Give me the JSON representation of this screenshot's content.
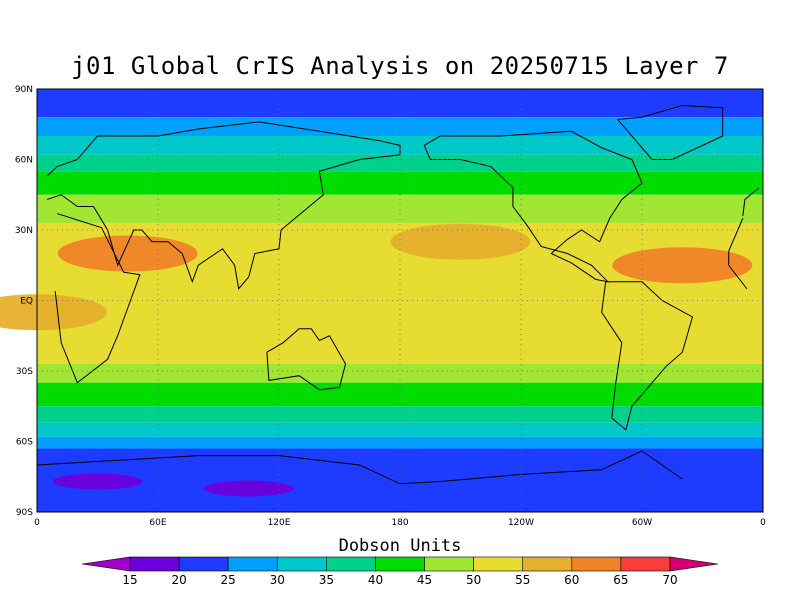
{
  "title": "j01 Global CrIS Analysis on 20250715 Layer 7",
  "colorbar": {
    "label": "Dobson Units",
    "ticks": [
      "15",
      "20",
      "25",
      "30",
      "35",
      "40",
      "45",
      "50",
      "55",
      "60",
      "65",
      "70"
    ],
    "colors": [
      "#a000c8",
      "#6e00dc",
      "#1e3cff",
      "#00a0ff",
      "#00c8c8",
      "#00d28c",
      "#00dc00",
      "#a0e632",
      "#e6dc32",
      "#e6af2d",
      "#f08228",
      "#fa3c3c",
      "#d2006e"
    ]
  },
  "axes": {
    "lat_labels": [
      "90N",
      "60N",
      "30N",
      "EQ",
      "30S",
      "60S",
      "90S"
    ],
    "lon_labels": [
      "0",
      "60E",
      "120E",
      "180",
      "120W",
      "60W",
      "0"
    ]
  },
  "chart_data": {
    "type": "heatmap",
    "title": "j01 Global CrIS Analysis on 20250715 Layer 7",
    "units": "Dobson Units",
    "x_range": [
      "0",
      "0"
    ],
    "y_range": [
      "90S",
      "90N"
    ],
    "contour_levels": [
      15,
      20,
      25,
      30,
      35,
      40,
      45,
      50,
      55,
      60,
      65,
      70
    ],
    "zonal_bands": [
      {
        "lat_from": 90,
        "lat_to": 78,
        "value": 20
      },
      {
        "lat_from": 78,
        "lat_to": 70,
        "value": 25
      },
      {
        "lat_from": 70,
        "lat_to": 62,
        "value": 30
      },
      {
        "lat_from": 62,
        "lat_to": 55,
        "value": 35
      },
      {
        "lat_from": 55,
        "lat_to": 45,
        "value": 40
      },
      {
        "lat_from": 45,
        "lat_to": 33,
        "value": 45
      },
      {
        "lat_from": 33,
        "lat_to": 20,
        "value": 50
      },
      {
        "lat_from": 20,
        "lat_to": -20,
        "value": 50
      },
      {
        "lat_from": -20,
        "lat_to": -27,
        "value": 50
      },
      {
        "lat_from": -27,
        "lat_to": -35,
        "value": 45
      },
      {
        "lat_from": -35,
        "lat_to": -45,
        "value": 40
      },
      {
        "lat_from": -45,
        "lat_to": -52,
        "value": 35
      },
      {
        "lat_from": -52,
        "lat_to": -58,
        "value": 30
      },
      {
        "lat_from": -58,
        "lat_to": -63,
        "value": 25
      },
      {
        "lat_from": -63,
        "lat_to": -90,
        "value": 20
      }
    ],
    "features": [
      {
        "desc": "high over Arabia / N Africa",
        "lon": 45,
        "lat": 20,
        "value": 60
      },
      {
        "desc": "high over tropical N Atlantic",
        "lon": -40,
        "lat": 15,
        "value": 60
      },
      {
        "desc": "elevated over subtropical Pacific",
        "lon": -150,
        "lat": 25,
        "value": 55
      },
      {
        "desc": "elevated over South Atlantic / Africa",
        "lon": 0,
        "lat": -5,
        "value": 55
      },
      {
        "desc": "low over Antarctica",
        "lon": 105,
        "lat": -80,
        "value": 15
      },
      {
        "desc": "low over Antarctica",
        "lon": 30,
        "lat": -77,
        "value": 15
      }
    ]
  }
}
